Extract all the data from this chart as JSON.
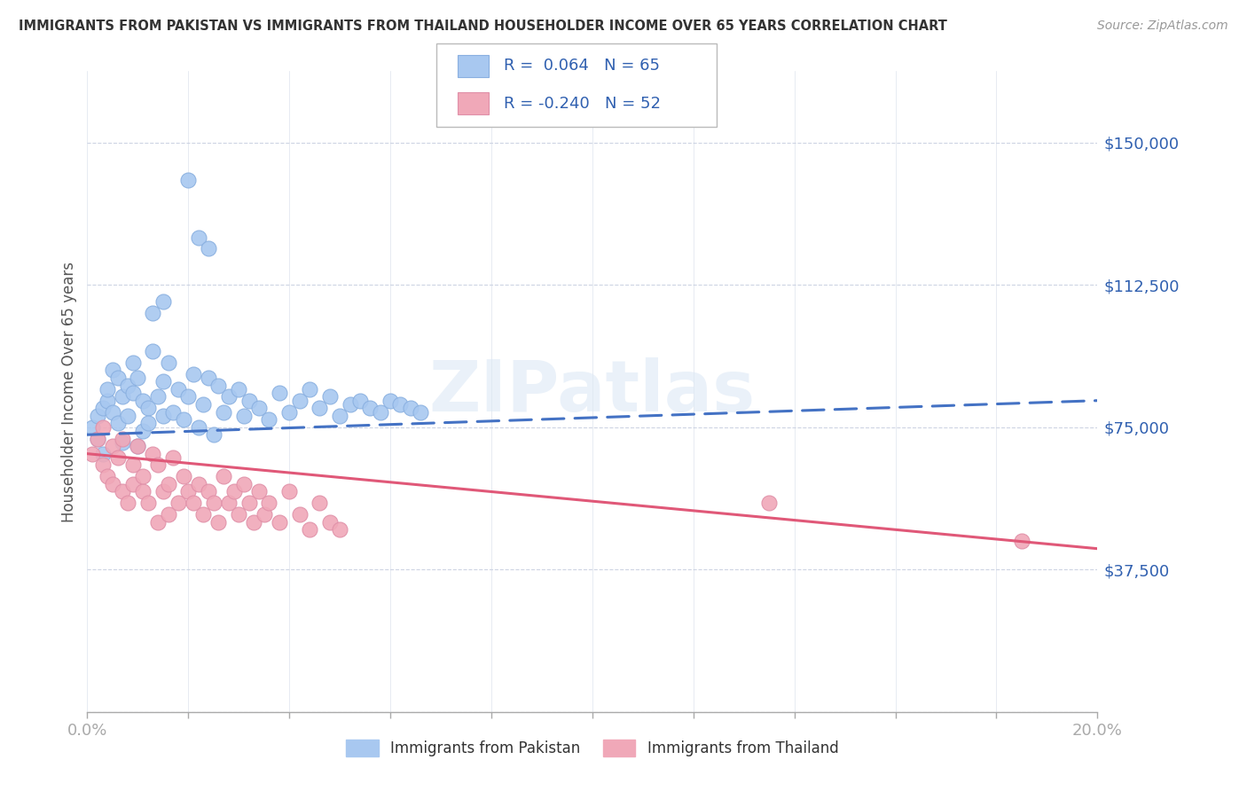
{
  "title": "IMMIGRANTS FROM PAKISTAN VS IMMIGRANTS FROM THAILAND HOUSEHOLDER INCOME OVER 65 YEARS CORRELATION CHART",
  "source": "Source: ZipAtlas.com",
  "ylabel": "Householder Income Over 65 years",
  "xlim": [
    0.0,
    0.2
  ],
  "ylim": [
    0,
    168750
  ],
  "yticks": [
    0,
    37500,
    75000,
    112500,
    150000
  ],
  "ytick_labels": [
    "",
    "$37,500",
    "$75,000",
    "$112,500",
    "$150,000"
  ],
  "bg_color": "#ffffff",
  "grid_color": "#c8d0e0",
  "pakistan_color": "#a8c8f0",
  "thailand_color": "#f0a8b8",
  "pakistan_line_color": "#4472c4",
  "thailand_line_color": "#e05878",
  "legend_pakistan_r": "0.064",
  "legend_pakistan_n": "65",
  "legend_thailand_r": "-0.240",
  "legend_thailand_n": "52",
  "pakistan_x": [
    0.001,
    0.002,
    0.002,
    0.003,
    0.003,
    0.004,
    0.004,
    0.005,
    0.005,
    0.006,
    0.006,
    0.007,
    0.007,
    0.008,
    0.008,
    0.009,
    0.009,
    0.01,
    0.01,
    0.011,
    0.011,
    0.012,
    0.012,
    0.013,
    0.014,
    0.015,
    0.015,
    0.016,
    0.017,
    0.018,
    0.019,
    0.02,
    0.021,
    0.022,
    0.023,
    0.024,
    0.025,
    0.026,
    0.027,
    0.028,
    0.03,
    0.031,
    0.032,
    0.034,
    0.036,
    0.038,
    0.04,
    0.042,
    0.044,
    0.046,
    0.048,
    0.05,
    0.052,
    0.054,
    0.056,
    0.058,
    0.06,
    0.062,
    0.064,
    0.066,
    0.02,
    0.022,
    0.024,
    0.013,
    0.015
  ],
  "pakistan_y": [
    75000,
    72000,
    78000,
    80000,
    68000,
    82000,
    85000,
    79000,
    90000,
    88000,
    76000,
    83000,
    71000,
    86000,
    78000,
    84000,
    92000,
    70000,
    88000,
    74000,
    82000,
    80000,
    76000,
    95000,
    83000,
    87000,
    78000,
    92000,
    79000,
    85000,
    77000,
    83000,
    89000,
    75000,
    81000,
    88000,
    73000,
    86000,
    79000,
    83000,
    85000,
    78000,
    82000,
    80000,
    77000,
    84000,
    79000,
    82000,
    85000,
    80000,
    83000,
    78000,
    81000,
    82000,
    80000,
    79000,
    82000,
    81000,
    80000,
    79000,
    140000,
    125000,
    122000,
    105000,
    108000
  ],
  "thailand_x": [
    0.001,
    0.002,
    0.003,
    0.003,
    0.004,
    0.005,
    0.005,
    0.006,
    0.007,
    0.007,
    0.008,
    0.009,
    0.009,
    0.01,
    0.011,
    0.011,
    0.012,
    0.013,
    0.014,
    0.014,
    0.015,
    0.016,
    0.016,
    0.017,
    0.018,
    0.019,
    0.02,
    0.021,
    0.022,
    0.023,
    0.024,
    0.025,
    0.026,
    0.027,
    0.028,
    0.029,
    0.03,
    0.031,
    0.032,
    0.033,
    0.034,
    0.035,
    0.036,
    0.038,
    0.04,
    0.042,
    0.044,
    0.046,
    0.048,
    0.05,
    0.135,
    0.185
  ],
  "thailand_y": [
    68000,
    72000,
    65000,
    75000,
    62000,
    70000,
    60000,
    67000,
    58000,
    72000,
    55000,
    65000,
    60000,
    70000,
    58000,
    62000,
    55000,
    68000,
    50000,
    65000,
    58000,
    60000,
    52000,
    67000,
    55000,
    62000,
    58000,
    55000,
    60000,
    52000,
    58000,
    55000,
    50000,
    62000,
    55000,
    58000,
    52000,
    60000,
    55000,
    50000,
    58000,
    52000,
    55000,
    50000,
    58000,
    52000,
    48000,
    55000,
    50000,
    48000,
    55000,
    45000
  ],
  "pak_trend_x0": 0.0,
  "pak_trend_x1": 0.2,
  "pak_trend_y0": 73000,
  "pak_trend_y1": 82000,
  "thai_trend_x0": 0.0,
  "thai_trend_x1": 0.2,
  "thai_trend_y0": 68000,
  "thai_trend_y1": 43000
}
